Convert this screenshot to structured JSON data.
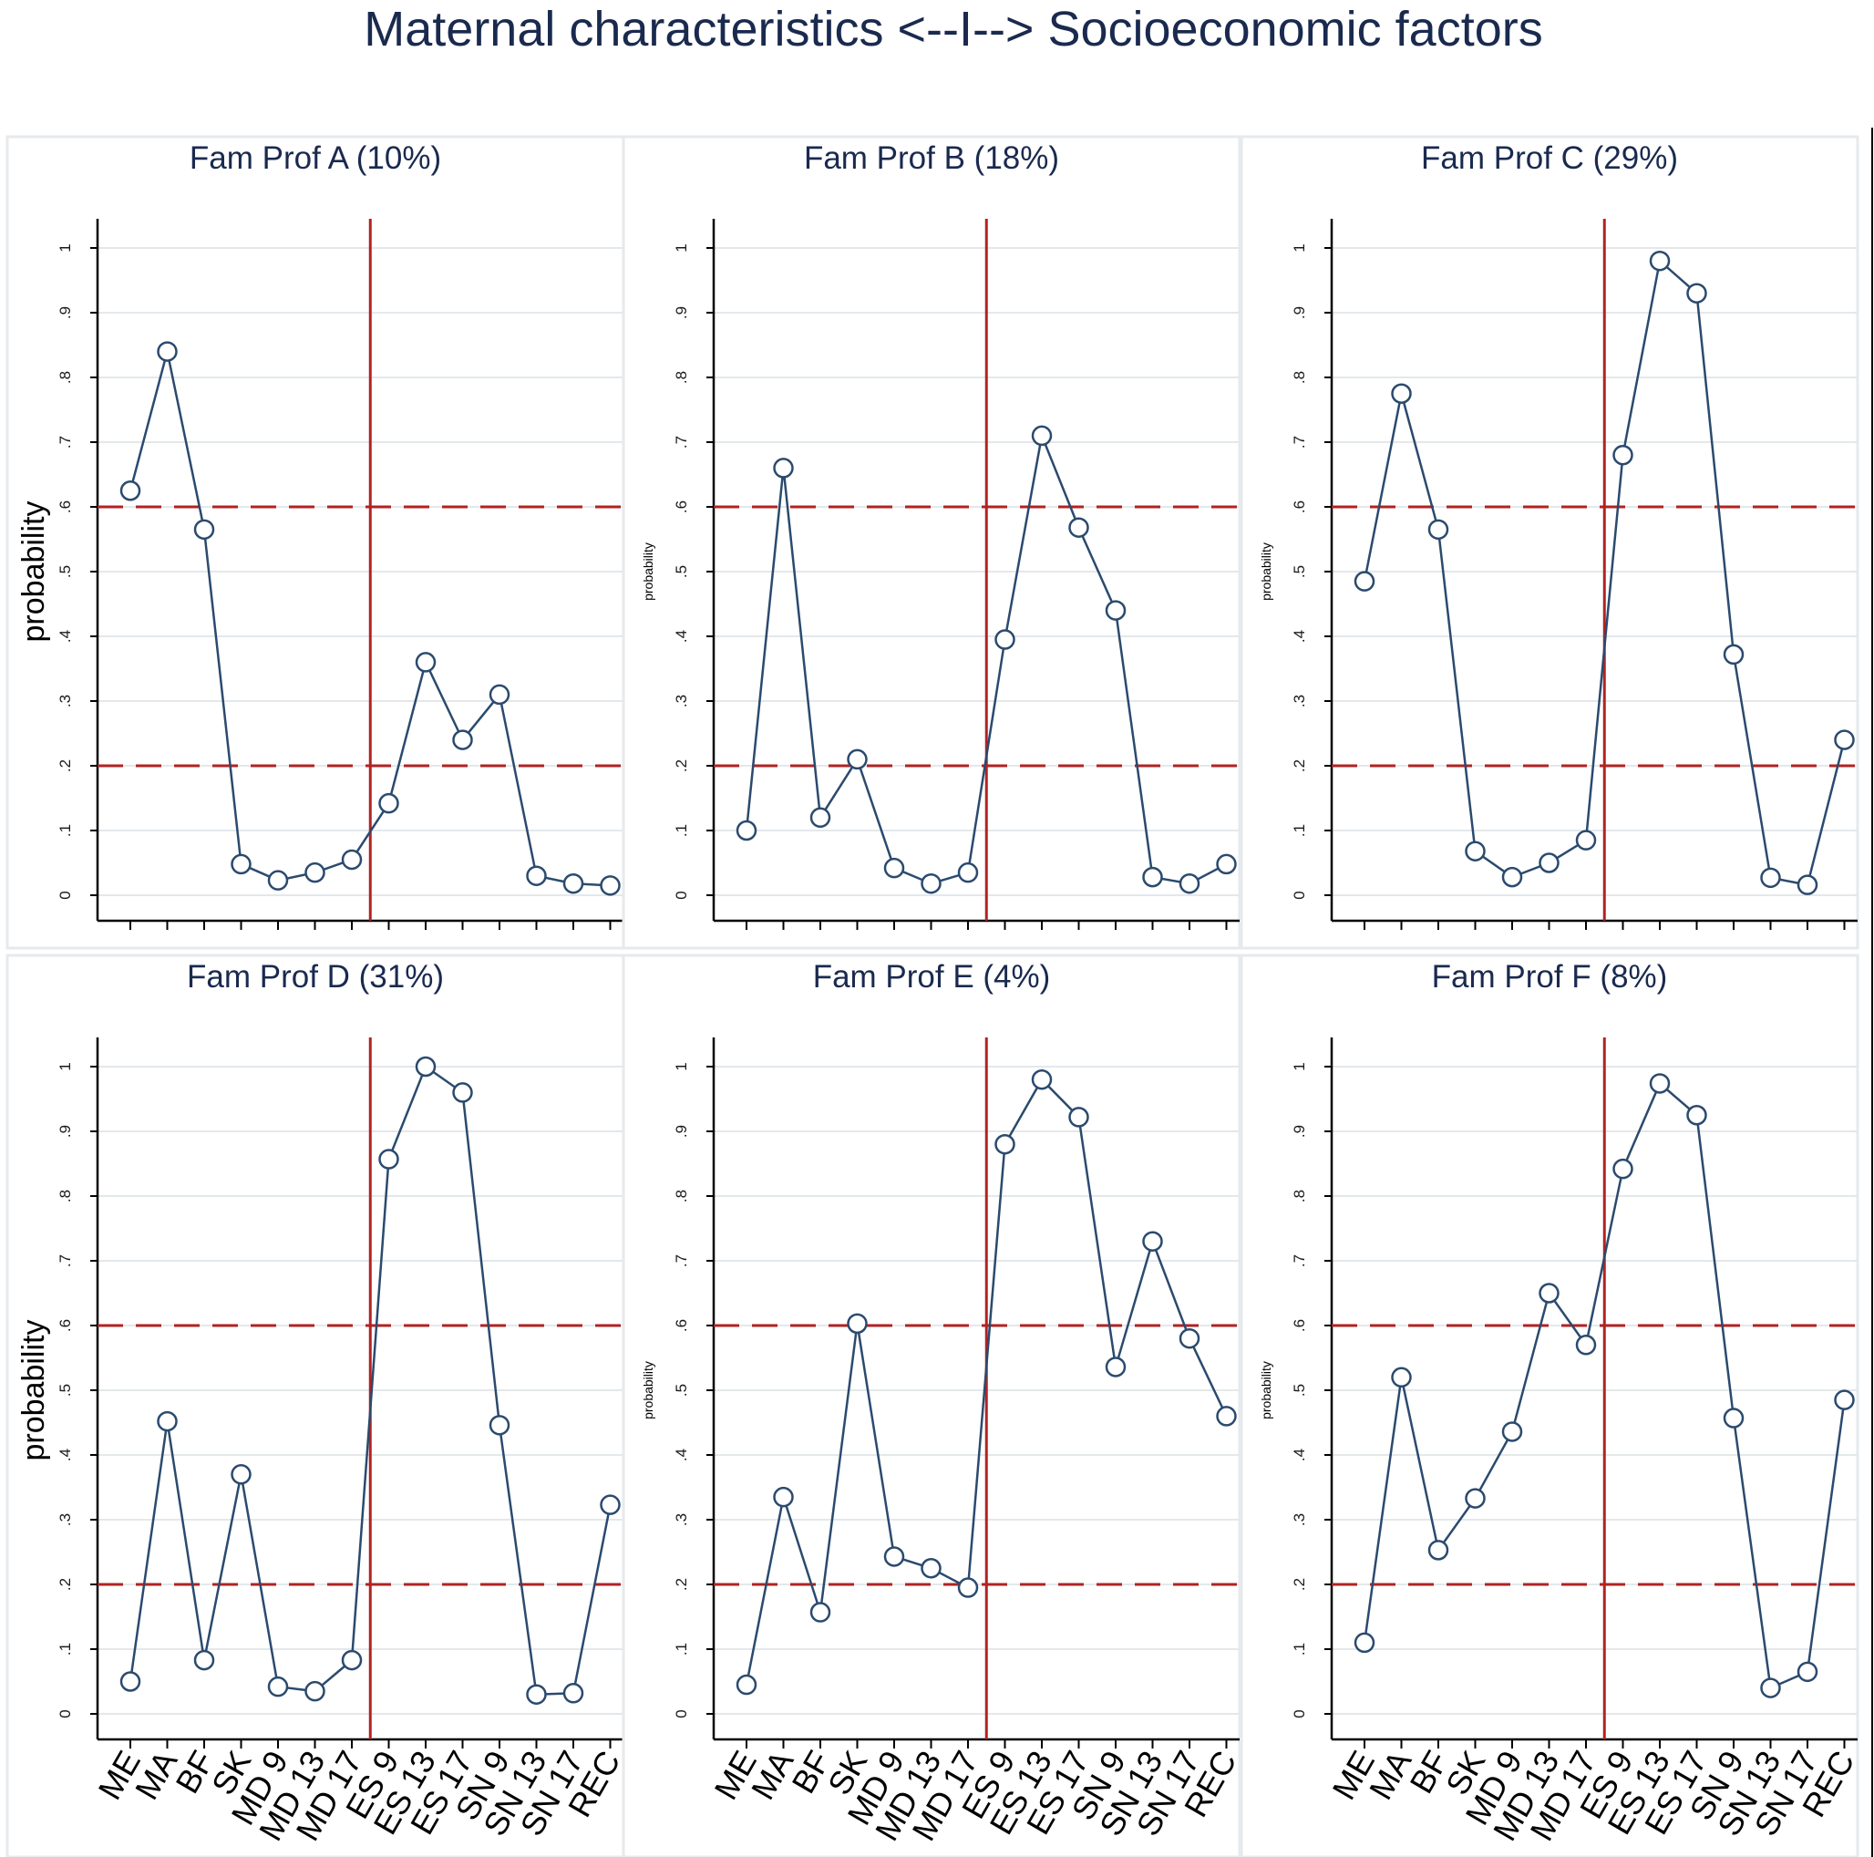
{
  "figure": {
    "title": "Maternal characteristics <--I--> Socioeconomic factors"
  },
  "colors": {
    "series": "#2b4a6e",
    "reference": "#b22222",
    "grid": "#e3e8eb",
    "axis": "#000000",
    "text": "#1a2a4f"
  },
  "chart_data": [
    {
      "type": "line",
      "title": "Fam Prof A (10%)",
      "ylabel": "probability",
      "categories": [
        "ME",
        "MA",
        "BF",
        "SK",
        "MD 9",
        "MD 13",
        "MD 17",
        "ES 9",
        "ES 13",
        "ES 17",
        "SN 9",
        "SN 13",
        "SN 17",
        "REC"
      ],
      "values": [
        0.625,
        0.84,
        0.565,
        0.048,
        0.023,
        0.035,
        0.055,
        0.142,
        0.36,
        0.24,
        0.31,
        0.03,
        0.018,
        0.015
      ],
      "ylim": [
        0,
        1
      ],
      "yticks": [
        "0",
        ".1",
        ".2",
        ".3",
        ".4",
        ".5",
        ".6",
        ".7",
        ".8",
        ".9",
        "1"
      ],
      "show_xtick_labels": false,
      "reference_lines": {
        "horizontal": [
          0.2,
          0.6
        ],
        "vertical_between": [
          "MD 17",
          "ES 9"
        ]
      },
      "grid": true
    },
    {
      "type": "line",
      "title": "Fam Prof B (18%)",
      "ylabel": "probability",
      "categories": [
        "ME",
        "MA",
        "BF",
        "SK",
        "MD 9",
        "MD 13",
        "MD 17",
        "ES 9",
        "ES 13",
        "ES 17",
        "SN 9",
        "SN 13",
        "SN 17",
        "REC"
      ],
      "values": [
        0.1,
        0.66,
        0.12,
        0.21,
        0.042,
        0.018,
        0.035,
        0.395,
        0.71,
        0.568,
        0.44,
        0.028,
        0.018,
        0.048
      ],
      "ylim": [
        0,
        1
      ],
      "yticks": [
        "0",
        ".1",
        ".2",
        ".3",
        ".4",
        ".5",
        ".6",
        ".7",
        ".8",
        ".9",
        "1"
      ],
      "show_xtick_labels": false,
      "reference_lines": {
        "horizontal": [
          0.2,
          0.6
        ],
        "vertical_between": [
          "MD 17",
          "ES 9"
        ]
      },
      "grid": true
    },
    {
      "type": "line",
      "title": "Fam Prof C (29%)",
      "ylabel": "probability",
      "categories": [
        "ME",
        "MA",
        "BF",
        "SK",
        "MD 9",
        "MD 13",
        "MD 17",
        "ES 9",
        "ES 13",
        "ES 17",
        "SN 9",
        "SN 13",
        "SN 17",
        "REC"
      ],
      "values": [
        0.485,
        0.775,
        0.565,
        0.068,
        0.028,
        0.05,
        0.085,
        0.68,
        0.98,
        0.93,
        0.372,
        0.027,
        0.016,
        0.24
      ],
      "ylim": [
        0,
        1
      ],
      "yticks": [
        "0",
        ".1",
        ".2",
        ".3",
        ".4",
        ".5",
        ".6",
        ".7",
        ".8",
        ".9",
        "1"
      ],
      "show_xtick_labels": false,
      "reference_lines": {
        "horizontal": [
          0.2,
          0.6
        ],
        "vertical_between": [
          "MD 17",
          "ES 9"
        ]
      },
      "grid": true
    },
    {
      "type": "line",
      "title": "Fam Prof D (31%)",
      "ylabel": "probability",
      "categories": [
        "ME",
        "MA",
        "BF",
        "SK",
        "MD 9",
        "MD 13",
        "MD 17",
        "ES 9",
        "ES 13",
        "ES 17",
        "SN 9",
        "SN 13",
        "SN 17",
        "REC"
      ],
      "values": [
        0.05,
        0.452,
        0.083,
        0.37,
        0.042,
        0.035,
        0.083,
        0.857,
        1.0,
        0.96,
        0.446,
        0.03,
        0.032,
        0.323
      ],
      "ylim": [
        0,
        1
      ],
      "yticks": [
        "0",
        ".1",
        ".2",
        ".3",
        ".4",
        ".5",
        ".6",
        ".7",
        ".8",
        ".9",
        "1"
      ],
      "show_xtick_labels": true,
      "reference_lines": {
        "horizontal": [
          0.2,
          0.6
        ],
        "vertical_between": [
          "MD 17",
          "ES 9"
        ]
      },
      "grid": true
    },
    {
      "type": "line",
      "title": "Fam Prof E (4%)",
      "ylabel": "probability",
      "categories": [
        "ME",
        "MA",
        "BF",
        "SK",
        "MD 9",
        "MD 13",
        "MD 17",
        "ES 9",
        "ES 13",
        "ES 17",
        "SN 9",
        "SN 13",
        "SN 17",
        "REC"
      ],
      "values": [
        0.045,
        0.335,
        0.157,
        0.603,
        0.243,
        0.225,
        0.195,
        0.88,
        0.98,
        0.922,
        0.536,
        0.73,
        0.58,
        0.46
      ],
      "ylim": [
        0,
        1
      ],
      "yticks": [
        "0",
        ".1",
        ".2",
        ".3",
        ".4",
        ".5",
        ".6",
        ".7",
        ".8",
        ".9",
        "1"
      ],
      "show_xtick_labels": true,
      "reference_lines": {
        "horizontal": [
          0.2,
          0.6
        ],
        "vertical_between": [
          "MD 17",
          "ES 9"
        ]
      },
      "grid": true
    },
    {
      "type": "line",
      "title": "Fam Prof F (8%)",
      "ylabel": "probability",
      "categories": [
        "ME",
        "MA",
        "BF",
        "SK",
        "MD 9",
        "MD 13",
        "MD 17",
        "ES 9",
        "ES 13",
        "ES 17",
        "SN 9",
        "SN 13",
        "SN 17",
        "REC"
      ],
      "values": [
        0.11,
        0.52,
        0.253,
        0.333,
        0.436,
        0.65,
        0.57,
        0.842,
        0.974,
        0.925,
        0.457,
        0.04,
        0.065,
        0.485
      ],
      "ylim": [
        0,
        1
      ],
      "yticks": [
        "0",
        ".1",
        ".2",
        ".3",
        ".4",
        ".5",
        ".6",
        ".7",
        ".8",
        ".9",
        "1"
      ],
      "show_xtick_labels": true,
      "reference_lines": {
        "horizontal": [
          0.2,
          0.6
        ],
        "vertical_between": [
          "MD 17",
          "ES 9"
        ]
      },
      "grid": true
    }
  ]
}
